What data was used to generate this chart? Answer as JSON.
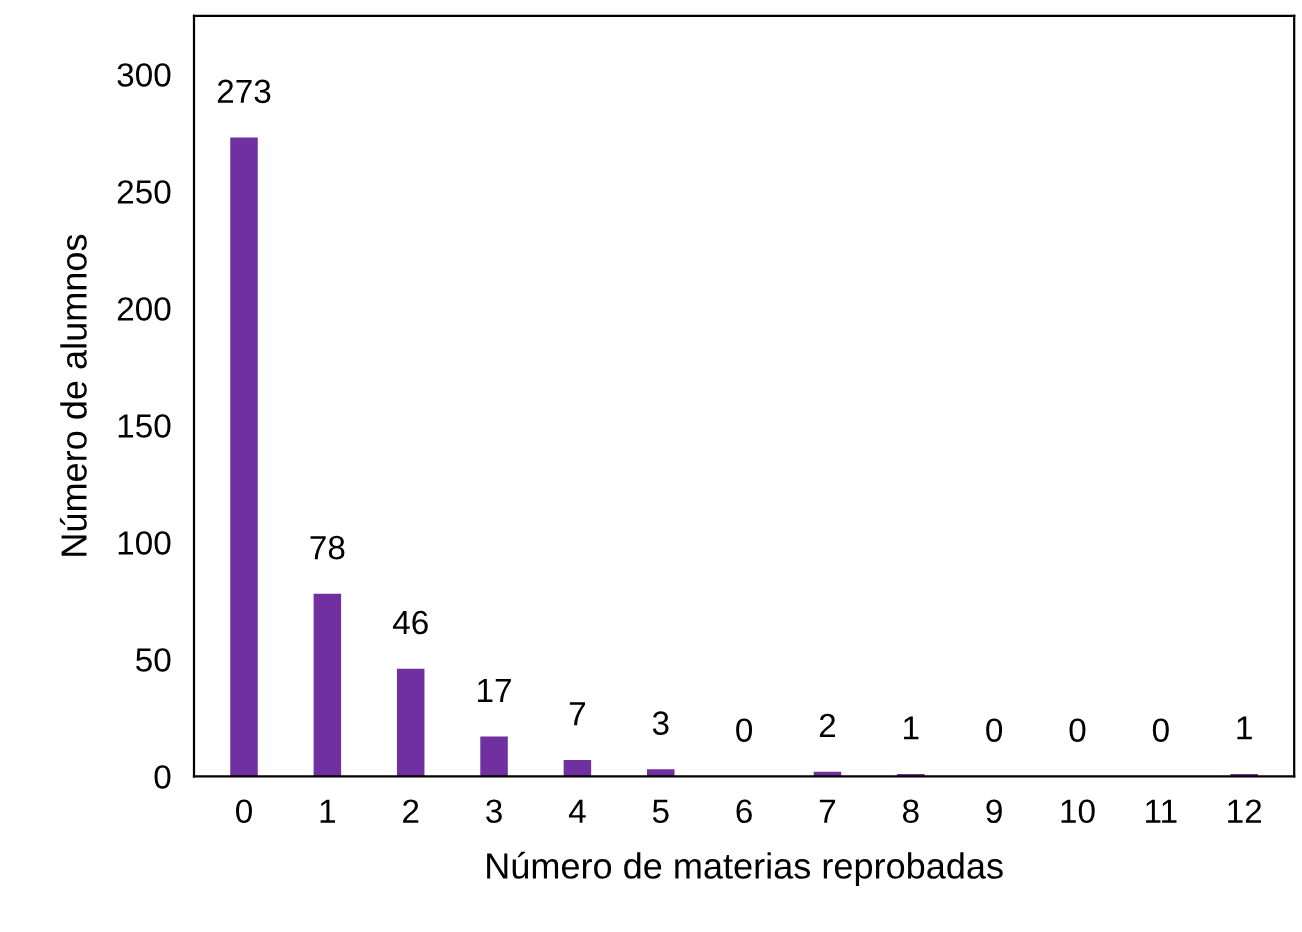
{
  "chart_data": {
    "type": "bar",
    "xlabel": "Número de materias reprobadas",
    "ylabel": "Número de alumnos",
    "categories": [
      "0",
      "1",
      "2",
      "3",
      "4",
      "5",
      "6",
      "7",
      "8",
      "9",
      "10",
      "11",
      "12"
    ],
    "values": [
      273,
      78,
      46,
      17,
      7,
      3,
      0,
      2,
      1,
      0,
      0,
      0,
      1
    ],
    "color": "#7030a0",
    "ylim": [
      0,
      325
    ],
    "yticks": [
      0,
      50,
      100,
      150,
      200,
      250,
      300
    ],
    "grid": false,
    "data_labels": true
  }
}
